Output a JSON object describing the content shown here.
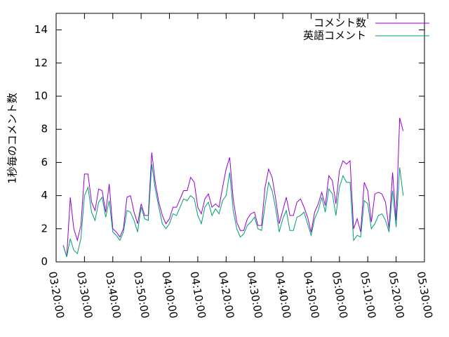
{
  "chart_data": {
    "type": "line",
    "ylabel": "1秒毎のコメント数",
    "xlim": [
      "03:20:00",
      "05:30:00"
    ],
    "xticks": [
      "03:20:00",
      "03:30:00",
      "03:40:00",
      "03:50:00",
      "04:00:00",
      "04:10:00",
      "04:20:00",
      "04:30:00",
      "04:40:00",
      "04:50:00",
      "05:00:00",
      "05:10:00",
      "05:20:00",
      "05:30:00"
    ],
    "ylim": [
      0,
      15
    ],
    "yticks": [
      0,
      2,
      4,
      6,
      8,
      10,
      12,
      14
    ],
    "legend": "top-right",
    "x": [
      "03:22:30",
      "03:23:45",
      "03:25:00",
      "03:26:15",
      "03:27:30",
      "03:28:45",
      "03:30:00",
      "03:31:15",
      "03:32:30",
      "03:33:45",
      "03:35:00",
      "03:36:15",
      "03:37:30",
      "03:38:45",
      "03:40:00",
      "03:41:15",
      "03:42:30",
      "03:43:45",
      "03:45:00",
      "03:46:15",
      "03:47:30",
      "03:48:45",
      "03:50:00",
      "03:51:15",
      "03:52:30",
      "03:53:45",
      "03:55:00",
      "03:56:15",
      "03:57:30",
      "03:58:45",
      "04:00:00",
      "04:01:15",
      "04:02:30",
      "04:03:45",
      "04:05:00",
      "04:06:15",
      "04:07:30",
      "04:08:45",
      "04:10:00",
      "04:11:15",
      "04:12:30",
      "04:13:45",
      "04:15:00",
      "04:16:15",
      "04:17:30",
      "04:18:45",
      "04:20:00",
      "04:21:15",
      "04:22:30",
      "04:23:45",
      "04:25:00",
      "04:26:15",
      "04:27:30",
      "04:28:45",
      "04:30:00",
      "04:31:15",
      "04:32:30",
      "04:33:45",
      "04:35:00",
      "04:36:15",
      "04:37:30",
      "04:38:45",
      "04:40:00",
      "04:41:15",
      "04:42:30",
      "04:43:45",
      "04:45:00",
      "04:46:15",
      "04:47:30",
      "04:48:45",
      "04:50:00",
      "04:51:15",
      "04:52:30",
      "04:53:45",
      "04:55:00",
      "04:56:15",
      "04:57:30",
      "04:58:45",
      "05:00:00",
      "05:01:15",
      "05:02:30",
      "05:03:45",
      "05:05:00",
      "05:06:15",
      "05:07:30",
      "05:08:45",
      "05:10:00",
      "05:11:15",
      "05:12:30",
      "05:13:45",
      "05:15:00",
      "05:16:15",
      "05:17:30",
      "05:18:45",
      "05:20:00",
      "05:21:15",
      "05:22:30"
    ],
    "series": [
      {
        "name": "コメント数",
        "color": "#9400d3",
        "values": [
          1.0,
          0.3,
          3.9,
          2.0,
          1.3,
          2.2,
          5.3,
          5.3,
          3.6,
          3.1,
          4.4,
          4.3,
          3.0,
          4.7,
          2.0,
          1.8,
          1.5,
          2.0,
          3.9,
          4.0,
          3.0,
          2.3,
          3.5,
          2.8,
          2.8,
          6.6,
          4.8,
          3.6,
          2.8,
          2.3,
          2.6,
          3.3,
          3.3,
          3.8,
          4.3,
          4.3,
          5.1,
          4.8,
          3.3,
          2.9,
          3.8,
          4.1,
          3.3,
          3.5,
          3.3,
          4.5,
          5.6,
          6.3,
          3.8,
          2.4,
          1.9,
          1.9,
          2.6,
          2.9,
          3.0,
          2.2,
          2.2,
          4.5,
          5.6,
          5.1,
          3.8,
          2.3,
          3.1,
          3.9,
          2.8,
          2.8,
          3.6,
          3.8,
          3.3,
          2.7,
          1.8,
          3.0,
          3.5,
          4.2,
          3.4,
          5.2,
          4.9,
          3.5,
          5.5,
          6.1,
          5.9,
          6.1,
          2.0,
          2.6,
          1.8,
          4.8,
          4.3,
          2.4,
          4.1,
          4.2,
          4.1,
          3.6,
          2.0,
          5.4,
          2.5,
          8.7,
          7.9
        ]
      },
      {
        "name": "英語コメント",
        "color": "#009e73",
        "values": [
          1.0,
          0.3,
          1.4,
          0.7,
          0.5,
          1.4,
          4.0,
          4.5,
          3.0,
          2.5,
          3.6,
          3.9,
          2.7,
          3.7,
          1.8,
          1.6,
          1.3,
          1.8,
          3.1,
          3.0,
          2.5,
          1.8,
          3.3,
          2.6,
          2.5,
          5.9,
          4.4,
          3.3,
          2.3,
          2.0,
          2.3,
          2.9,
          2.8,
          3.3,
          3.8,
          3.7,
          4.0,
          3.8,
          2.8,
          2.3,
          3.3,
          3.6,
          2.8,
          3.2,
          2.9,
          3.7,
          4.0,
          5.4,
          3.1,
          2.0,
          1.5,
          1.7,
          2.2,
          2.4,
          2.7,
          2.0,
          1.9,
          3.4,
          4.8,
          4.3,
          3.2,
          1.8,
          2.6,
          3.1,
          1.9,
          1.9,
          2.7,
          2.8,
          3.0,
          2.3,
          1.6,
          2.6,
          3.1,
          3.9,
          3.0,
          4.4,
          4.1,
          2.8,
          4.5,
          5.2,
          4.8,
          4.8,
          1.3,
          1.6,
          1.5,
          3.7,
          3.5,
          2.0,
          2.3,
          2.8,
          2.9,
          2.5,
          1.8,
          4.3,
          2.1,
          5.7,
          4.0
        ]
      }
    ]
  }
}
